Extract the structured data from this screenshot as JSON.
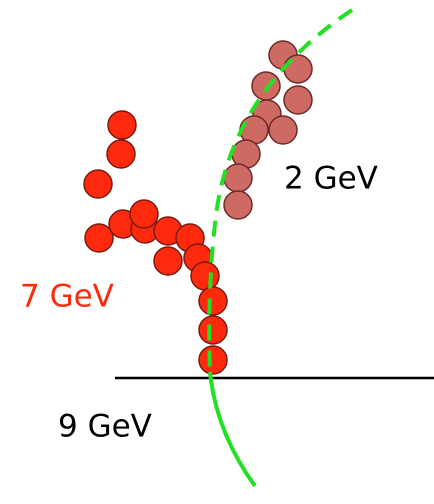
{
  "labels": {
    "track_2": "2 GeV",
    "track_7": "7 GeV",
    "track_9": "9 GeV"
  }
}
